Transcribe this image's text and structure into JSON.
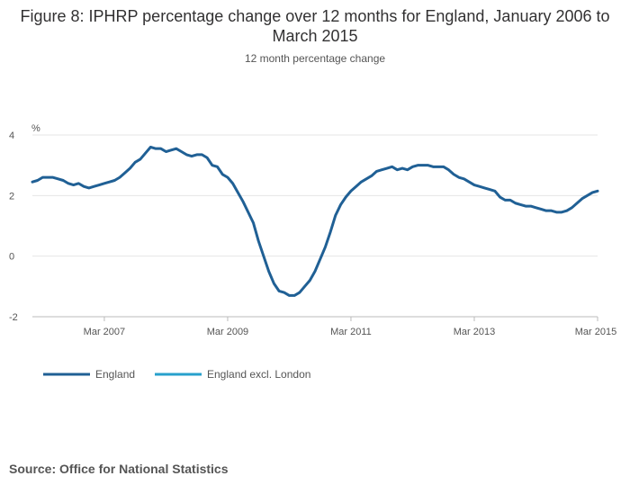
{
  "title": "Figure 8: IPHRP percentage change over 12 months for England, January 2006 to March 2015",
  "subtitle": "12 month percentage change",
  "source": "Source: Office for National Statistics",
  "colors": {
    "england": "#206095",
    "england_excl_london": "#27a0cc",
    "grid": "#e5e5e5"
  },
  "chart_data": {
    "type": "line",
    "title": "Figure 8: IPHRP percentage change over 12 months for England, January 2006 to March 2015",
    "ylabel": "%",
    "ylim": [
      -2,
      4
    ],
    "yticks": [
      4,
      2,
      0,
      -2
    ],
    "x_start": "Jan 2006",
    "x_end": "Mar 2015",
    "xticks": [
      {
        "label": "Mar 2007",
        "index": 14
      },
      {
        "label": "Mar 2009",
        "index": 38
      },
      {
        "label": "Mar 2011",
        "index": 62
      },
      {
        "label": "Mar 2013",
        "index": 86
      },
      {
        "label": "Mar 2015",
        "index": 110
      }
    ],
    "legend": [
      "England",
      "England excl. London"
    ],
    "series": [
      {
        "name": "England",
        "values": [
          2.45,
          2.5,
          2.6,
          2.6,
          2.6,
          2.55,
          2.5,
          2.4,
          2.35,
          2.4,
          2.3,
          2.25,
          2.3,
          2.35,
          2.4,
          2.45,
          2.5,
          2.6,
          2.75,
          2.9,
          3.1,
          3.2,
          3.4,
          3.6,
          3.55,
          3.55,
          3.45,
          3.5,
          3.55,
          3.45,
          3.35,
          3.3,
          3.35,
          3.35,
          3.25,
          3.0,
          2.95,
          2.7,
          2.6,
          2.4,
          2.1,
          1.8,
          1.45,
          1.1,
          0.5,
          0.0,
          -0.5,
          -0.9,
          -1.15,
          -1.2,
          -1.3,
          -1.3,
          -1.2,
          -1.0,
          -0.8,
          -0.5,
          -0.1,
          0.3,
          0.8,
          1.35,
          1.7,
          1.95,
          2.15,
          2.3,
          2.45,
          2.55,
          2.65,
          2.8,
          2.85,
          2.9,
          2.95,
          2.85,
          2.9,
          2.85,
          2.95,
          3.0,
          3.0,
          3.0,
          2.95,
          2.95,
          2.95,
          2.85,
          2.7,
          2.6,
          2.55,
          2.45,
          2.35,
          2.3,
          2.25,
          2.2,
          2.15,
          1.95,
          1.85,
          1.85,
          1.75,
          1.7,
          1.65,
          1.65,
          1.6,
          1.55,
          1.5,
          1.5,
          1.45,
          1.45,
          1.5,
          1.6,
          1.75,
          1.9,
          2.0,
          2.1,
          2.15
        ]
      },
      {
        "name": "England excl. London",
        "values": []
      }
    ]
  }
}
